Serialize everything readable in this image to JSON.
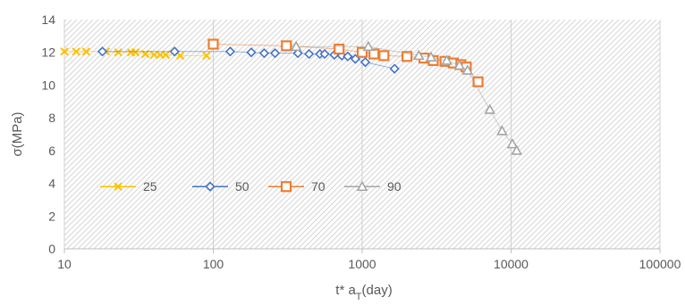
{
  "chart_data": {
    "type": "scatter",
    "title": "",
    "xlabel": "t* a",
    "xlabel_sub": "T",
    "xlabel_suffix": "(day)",
    "ylabel": "σ(MPa)",
    "x_scale": "log",
    "xlim": [
      10,
      100000
    ],
    "ylim": [
      0,
      14
    ],
    "x_ticks": [
      "10",
      "100",
      "1000",
      "10000",
      "100000"
    ],
    "y_ticks": [
      "0",
      "2",
      "4",
      "6",
      "8",
      "10",
      "12",
      "14"
    ],
    "grid": "vertical lines at decades, hatched plot background",
    "legend_position": "inside-bottom-left",
    "series": [
      {
        "name": "25",
        "color": "#FFC000",
        "marker": "x",
        "x": [
          10,
          12,
          14,
          19,
          23,
          28,
          30,
          35,
          40,
          44,
          48,
          60,
          90
        ],
        "y": [
          12.05,
          12.05,
          12.05,
          12.05,
          12.0,
          12.0,
          12.0,
          11.9,
          11.85,
          11.85,
          11.85,
          11.8,
          11.8
        ]
      },
      {
        "name": "50",
        "color": "#4472C4",
        "marker": "diamond",
        "x": [
          18,
          55,
          130,
          180,
          220,
          260,
          370,
          440,
          520,
          560,
          650,
          730,
          800,
          900,
          1050,
          1650
        ],
        "y": [
          12.05,
          12.05,
          12.05,
          12.0,
          11.95,
          11.95,
          11.95,
          11.9,
          11.9,
          11.9,
          11.85,
          11.8,
          11.75,
          11.6,
          11.4,
          11.0
        ]
      },
      {
        "name": "70",
        "color": "#ED7D31",
        "marker": "square",
        "x": [
          100,
          310,
          700,
          1000,
          1200,
          1400,
          2000,
          2600,
          3000,
          3600,
          4100,
          4600,
          5000,
          6000
        ],
        "y": [
          12.5,
          12.4,
          12.2,
          12.0,
          11.9,
          11.8,
          11.75,
          11.65,
          11.5,
          11.45,
          11.35,
          11.25,
          11.1,
          10.2
        ]
      },
      {
        "name": "90",
        "color": "#A5A5A5",
        "marker": "triangle",
        "x": [
          360,
          1100,
          2400,
          2900,
          3700,
          4500,
          5100,
          7200,
          8700,
          10200,
          10900
        ],
        "y": [
          12.35,
          12.35,
          11.8,
          11.7,
          11.5,
          11.2,
          10.9,
          8.5,
          7.2,
          6.4,
          6.0
        ]
      }
    ]
  }
}
